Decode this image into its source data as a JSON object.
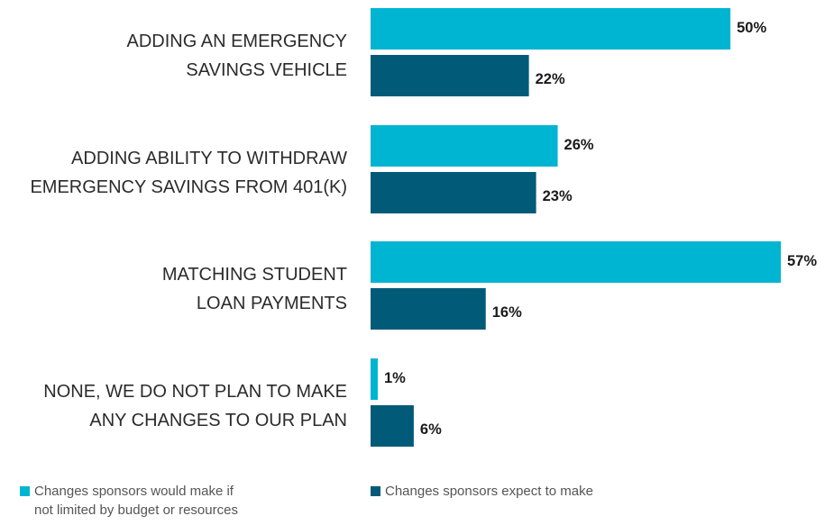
{
  "chart_data": {
    "type": "bar",
    "orientation": "horizontal",
    "categories": [
      [
        "ADDING AN EMERGENCY",
        "SAVINGS VEHICLE"
      ],
      [
        "ADDING ABILITY TO WITHDRAW",
        "EMERGENCY SAVINGS FROM 401(K)"
      ],
      [
        "MATCHING STUDENT",
        "LOAN PAYMENTS"
      ],
      [
        "NONE, WE DO NOT PLAN TO MAKE",
        "ANY CHANGES TO OUR PLAN"
      ]
    ],
    "series": [
      {
        "name": "Changes sponsors would make if not limited by budget or resources",
        "legend_lines": [
          "Changes sponsors would make if",
          "not limited by budget or resources"
        ],
        "color": "#00b5d1",
        "values": [
          50,
          26,
          57,
          1
        ],
        "labels": [
          "50%",
          "26%",
          "57%",
          "1%"
        ]
      },
      {
        "name": "Changes sponsors expect to make",
        "legend_lines": [
          "Changes sponsors expect to make"
        ],
        "color": "#005a78",
        "values": [
          22,
          23,
          16,
          6
        ],
        "labels": [
          "22%",
          "23%",
          "16%",
          "6%"
        ]
      }
    ],
    "xlim": [
      0,
      57
    ],
    "grid": false,
    "legend_position": "bottom"
  }
}
